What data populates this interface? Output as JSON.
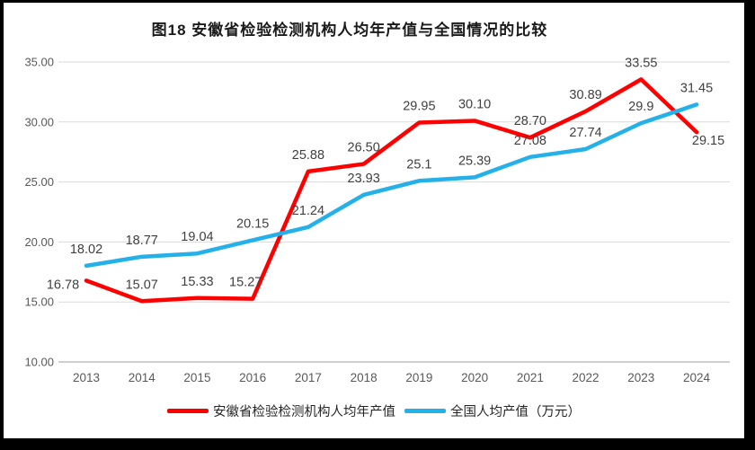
{
  "title": "图18 安徽省检验检测机构人均年产值与全国情况的比较",
  "chart_data": {
    "type": "line",
    "title": "图18 安徽省检验检测机构人均年产值与全国情况的比较",
    "categories": [
      "2013",
      "2014",
      "2015",
      "2016",
      "2017",
      "2018",
      "2019",
      "2020",
      "2021",
      "2022",
      "2023",
      "2024"
    ],
    "series": [
      {
        "name": "安徽省检验检测机构人均年产值",
        "color": "#FE0000",
        "values": [
          16.78,
          15.07,
          15.33,
          15.27,
          25.88,
          26.5,
          29.95,
          30.1,
          28.7,
          30.89,
          33.55,
          29.15
        ],
        "labels": [
          "16.78",
          "15.07",
          "15.33",
          "15.27",
          "25.88",
          "26.50",
          "29.95",
          "30.10",
          "28.70",
          "30.89",
          "33.55",
          "29.15"
        ]
      },
      {
        "name": "全国人均产值（万元）",
        "color": "#24B0E8",
        "values": [
          18.02,
          18.77,
          19.04,
          20.15,
          21.24,
          23.93,
          25.1,
          25.39,
          27.08,
          27.74,
          29.9,
          31.45
        ],
        "labels": [
          "18.02",
          "18.77",
          "19.04",
          "20.15",
          "21.24",
          "23.93",
          "25.1",
          "25.39",
          "27.08",
          "27.74",
          "29.9",
          "31.45"
        ]
      }
    ],
    "y_ticks": [
      "10.00",
      "15.00",
      "20.00",
      "25.00",
      "30.00",
      "35.00"
    ],
    "ylim": [
      10,
      35
    ],
    "xlabel": "",
    "ylabel": "",
    "grid": true,
    "legend_position": "bottom",
    "colors": {
      "gridline": "#D9D9D9",
      "axis_line": "#BFBFBF",
      "tick_text": "#595959",
      "data_label_text": "#404040"
    }
  }
}
